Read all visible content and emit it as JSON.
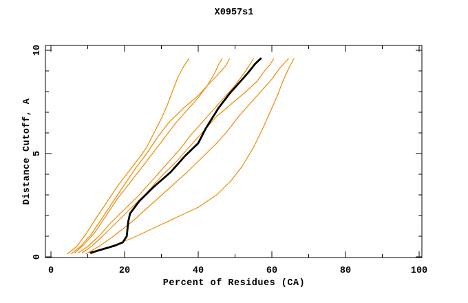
{
  "window": {
    "background": "#ffffff"
  },
  "chart_data": {
    "type": "line",
    "title": "X0957s1",
    "xlabel": "Percent of Residues (CA)",
    "ylabel": "Distance Cutoff, A",
    "xlim": [
      0,
      100
    ],
    "ylim": [
      0,
      10
    ],
    "grid": "off",
    "legend": "none",
    "x_major_ticks": [
      0,
      20,
      40,
      60,
      80,
      100
    ],
    "x_minor_ticks": [
      10,
      30,
      50,
      70,
      90
    ],
    "x_tick_labels": [
      "0",
      "20",
      "40",
      "60",
      "80",
      "100"
    ],
    "y_major_ticks": [
      0,
      5,
      10
    ],
    "y_minor_ticks": [
      1,
      2,
      3,
      4,
      6,
      7,
      8,
      9
    ],
    "y_tick_labels": [
      "0",
      "5",
      "10"
    ],
    "colors": {
      "black_series": "#000000",
      "orange_series": "#f08a00",
      "axis": "#000000"
    },
    "series": [
      {
        "name": "orange-1",
        "color": "#f08a00",
        "width": 1.2,
        "points": [
          [
            4.5,
            0.15
          ],
          [
            7,
            0.5
          ],
          [
            9.5,
            1.1
          ],
          [
            12,
            1.8
          ],
          [
            15,
            2.6
          ],
          [
            18,
            3.4
          ],
          [
            21,
            4.1
          ],
          [
            24,
            4.8
          ],
          [
            26,
            5.3
          ],
          [
            28,
            6.0
          ],
          [
            30,
            6.7
          ],
          [
            31.5,
            7.3
          ],
          [
            33,
            8.0
          ],
          [
            34.5,
            8.7
          ],
          [
            36,
            9.2
          ],
          [
            37.5,
            9.6
          ]
        ]
      },
      {
        "name": "orange-2",
        "color": "#f08a00",
        "width": 1.2,
        "points": [
          [
            5.5,
            0.15
          ],
          [
            8,
            0.5
          ],
          [
            11,
            1.1
          ],
          [
            14,
            1.9
          ],
          [
            17,
            2.7
          ],
          [
            20,
            3.5
          ],
          [
            23,
            4.3
          ],
          [
            26,
            5.0
          ],
          [
            29,
            5.8
          ],
          [
            32,
            6.5
          ],
          [
            36,
            7.2
          ],
          [
            40,
            7.8
          ],
          [
            42.5,
            8.3
          ],
          [
            44.5,
            8.9
          ],
          [
            45.5,
            9.3
          ],
          [
            46.5,
            9.6
          ]
        ]
      },
      {
        "name": "orange-3",
        "color": "#f08a00",
        "width": 1.2,
        "points": [
          [
            6.5,
            0.2
          ],
          [
            9,
            0.6
          ],
          [
            12,
            1.2
          ],
          [
            15,
            2.0
          ],
          [
            18,
            2.8
          ],
          [
            21.5,
            3.6
          ],
          [
            25,
            4.4
          ],
          [
            28,
            5.1
          ],
          [
            31,
            5.8
          ],
          [
            34,
            6.5
          ],
          [
            37,
            7.1
          ],
          [
            40,
            7.7
          ],
          [
            42.5,
            8.3
          ],
          [
            45.5,
            8.85
          ],
          [
            47.5,
            9.25
          ],
          [
            48.5,
            9.6
          ]
        ]
      },
      {
        "name": "orange-4",
        "color": "#f08a00",
        "width": 1.2,
        "points": [
          [
            7.5,
            0.2
          ],
          [
            10,
            0.5
          ],
          [
            13,
            1.0
          ],
          [
            16,
            1.6
          ],
          [
            20,
            2.3
          ],
          [
            24,
            3.0
          ],
          [
            28,
            3.8
          ],
          [
            32,
            4.6
          ],
          [
            35,
            5.2
          ],
          [
            38,
            5.9
          ],
          [
            41,
            6.5
          ],
          [
            44,
            7.1
          ],
          [
            47,
            7.7
          ],
          [
            50,
            8.3
          ],
          [
            52.5,
            8.9
          ],
          [
            54,
            9.3
          ],
          [
            55,
            9.6
          ]
        ]
      },
      {
        "name": "orange-5",
        "color": "#f08a00",
        "width": 1.2,
        "points": [
          [
            8.5,
            0.2
          ],
          [
            11,
            0.5
          ],
          [
            14,
            1.0
          ],
          [
            18,
            1.7
          ],
          [
            22,
            2.4
          ],
          [
            26,
            3.1
          ],
          [
            30,
            3.9
          ],
          [
            34,
            4.6
          ],
          [
            37,
            5.2
          ],
          [
            41,
            6.0
          ],
          [
            45,
            6.8
          ],
          [
            49,
            7.4
          ],
          [
            53,
            8.0
          ],
          [
            56,
            8.5
          ],
          [
            58,
            9.0
          ],
          [
            59.5,
            9.3
          ],
          [
            60.5,
            9.6
          ]
        ]
      },
      {
        "name": "orange-6",
        "color": "#f08a00",
        "width": 1.2,
        "points": [
          [
            9.5,
            0.15
          ],
          [
            13,
            0.5
          ],
          [
            17,
            1.0
          ],
          [
            22,
            1.7
          ],
          [
            27,
            2.5
          ],
          [
            32,
            3.3
          ],
          [
            37,
            4.1
          ],
          [
            41,
            4.8
          ],
          [
            45,
            5.5
          ],
          [
            48,
            6.1
          ],
          [
            51,
            6.8
          ],
          [
            54,
            7.4
          ],
          [
            57,
            8.0
          ],
          [
            60,
            8.6
          ],
          [
            62,
            9.1
          ],
          [
            63.5,
            9.4
          ],
          [
            64.5,
            9.6
          ]
        ]
      },
      {
        "name": "orange-7",
        "color": "#f08a00",
        "width": 1.2,
        "points": [
          [
            11,
            0.15
          ],
          [
            16,
            0.5
          ],
          [
            22,
            0.9
          ],
          [
            28,
            1.4
          ],
          [
            34,
            1.9
          ],
          [
            40,
            2.4
          ],
          [
            45,
            3.0
          ],
          [
            49,
            3.7
          ],
          [
            52,
            4.4
          ],
          [
            55,
            5.3
          ],
          [
            57.5,
            6.2
          ],
          [
            59.5,
            7.0
          ],
          [
            61.5,
            7.8
          ],
          [
            63,
            8.5
          ],
          [
            64.5,
            9.1
          ],
          [
            66,
            9.6
          ]
        ]
      },
      {
        "name": "black",
        "color": "#000000",
        "width": 2.8,
        "points": [
          [
            10.8,
            0.2
          ],
          [
            17.5,
            0.55
          ],
          [
            19.5,
            0.7
          ],
          [
            20.6,
            1.0
          ],
          [
            21,
            1.7
          ],
          [
            21.5,
            2.1
          ],
          [
            24,
            2.7
          ],
          [
            28,
            3.4
          ],
          [
            32.5,
            4.1
          ],
          [
            36.5,
            4.9
          ],
          [
            40,
            5.5
          ],
          [
            42,
            6.2
          ],
          [
            45.5,
            7.2
          ],
          [
            48.5,
            7.9
          ],
          [
            50.5,
            8.3
          ],
          [
            53.5,
            8.9
          ],
          [
            55.5,
            9.35
          ],
          [
            57,
            9.6
          ]
        ]
      }
    ]
  }
}
